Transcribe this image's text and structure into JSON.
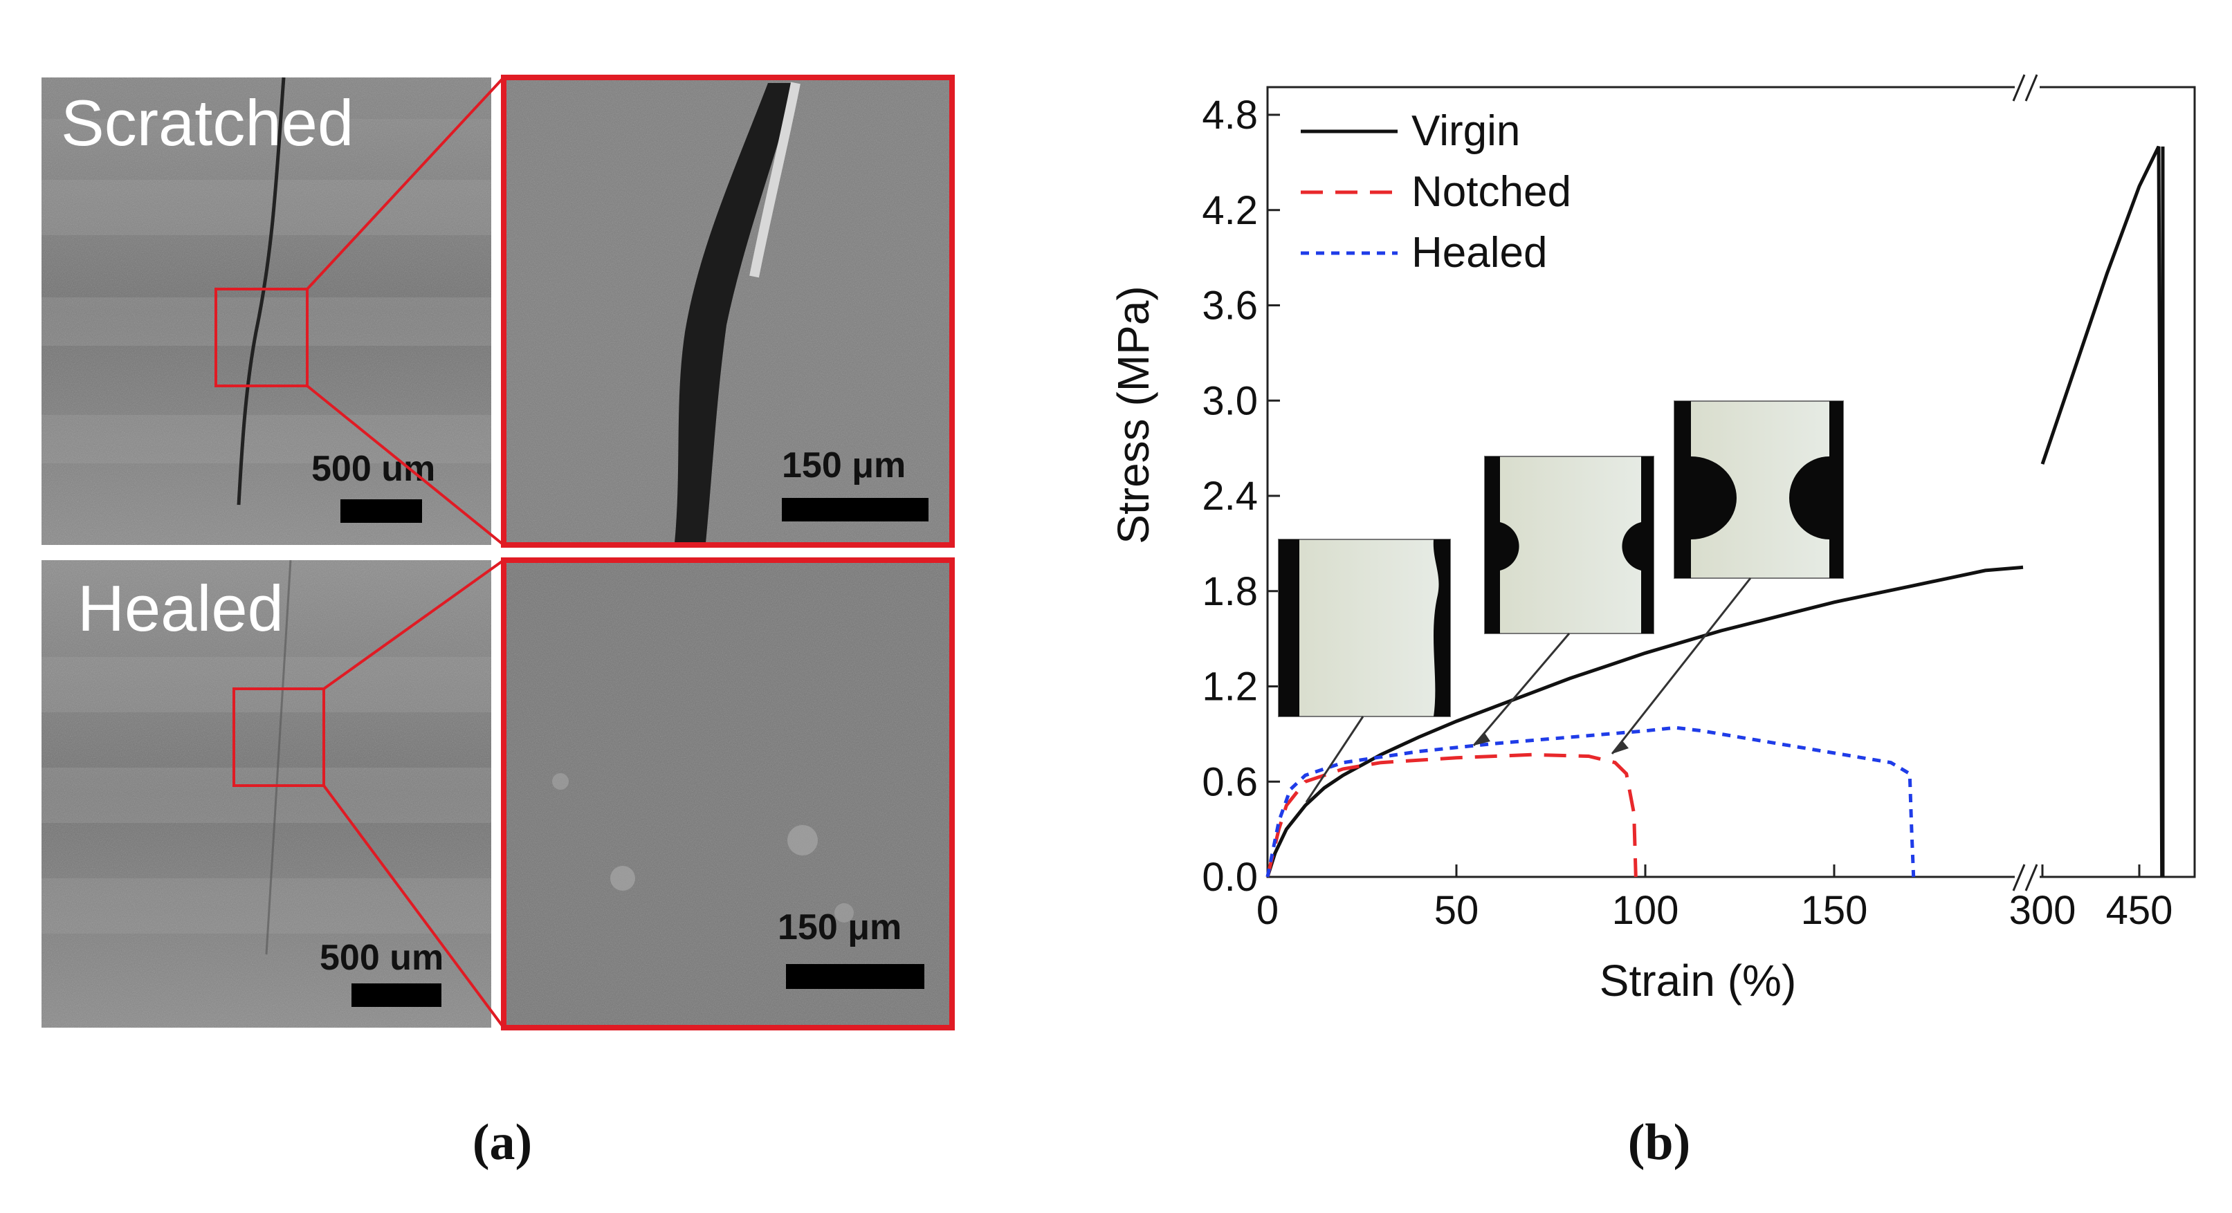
{
  "panel_a": {
    "label": "(a)",
    "top_label": "Scratched",
    "bottom_label": "Healed",
    "scale_left": "500 um",
    "scale_right": "150 μm",
    "highlight_color": "#e01b24"
  },
  "panel_b": {
    "label": "(b)"
  },
  "chart_data": {
    "type": "line",
    "xlabel": "Strain (%)",
    "ylabel": "Stress (MPa)",
    "x_ticks": [
      "0",
      "50",
      "100",
      "150",
      "300",
      "450"
    ],
    "y_ticks": [
      "0.0",
      "0.6",
      "1.2",
      "1.8",
      "2.4",
      "3.0",
      "3.6",
      "4.2",
      "4.8"
    ],
    "xlim": [
      0,
      500
    ],
    "ylim": [
      0,
      4.9
    ],
    "x_axis_break": "//",
    "legend_position": "top-left",
    "series": [
      {
        "name": "Virgin",
        "color": "#111111",
        "dash": "solid",
        "points": [
          [
            0,
            0
          ],
          [
            2,
            0.15
          ],
          [
            5,
            0.3
          ],
          [
            10,
            0.45
          ],
          [
            15,
            0.56
          ],
          [
            20,
            0.64
          ],
          [
            30,
            0.77
          ],
          [
            40,
            0.88
          ],
          [
            50,
            0.98
          ],
          [
            60,
            1.07
          ],
          [
            70,
            1.16
          ],
          [
            80,
            1.25
          ],
          [
            90,
            1.33
          ],
          [
            100,
            1.41
          ],
          [
            110,
            1.48
          ],
          [
            120,
            1.55
          ],
          [
            130,
            1.61
          ],
          [
            140,
            1.67
          ],
          [
            150,
            1.73
          ],
          [
            160,
            1.78
          ],
          [
            170,
            1.83
          ],
          [
            180,
            1.88
          ],
          [
            190,
            1.93
          ],
          [
            200,
            1.95
          ],
          [
            300,
            2.6
          ],
          [
            350,
            3.2
          ],
          [
            400,
            3.8
          ],
          [
            450,
            4.35
          ],
          [
            480,
            4.6
          ],
          [
            485,
            0
          ]
        ]
      },
      {
        "name": "Notched",
        "color": "#e8282b",
        "dash": "long",
        "points": [
          [
            0,
            0
          ],
          [
            3,
            0.3
          ],
          [
            5,
            0.45
          ],
          [
            10,
            0.6
          ],
          [
            20,
            0.68
          ],
          [
            30,
            0.72
          ],
          [
            50,
            0.75
          ],
          [
            70,
            0.77
          ],
          [
            85,
            0.76
          ],
          [
            92,
            0.72
          ],
          [
            95,
            0.65
          ],
          [
            97,
            0.4
          ],
          [
            97.5,
            0
          ]
        ]
      },
      {
        "name": "Healed",
        "color": "#1f3ce8",
        "dash": "short",
        "points": [
          [
            0,
            0
          ],
          [
            3,
            0.35
          ],
          [
            6,
            0.55
          ],
          [
            10,
            0.64
          ],
          [
            20,
            0.72
          ],
          [
            40,
            0.79
          ],
          [
            60,
            0.84
          ],
          [
            80,
            0.88
          ],
          [
            100,
            0.92
          ],
          [
            108,
            0.94
          ],
          [
            115,
            0.92
          ],
          [
            130,
            0.86
          ],
          [
            150,
            0.78
          ],
          [
            165,
            0.72
          ],
          [
            170,
            0.65
          ],
          [
            170.5,
            0.3
          ],
          [
            171,
            0
          ]
        ]
      }
    ],
    "annotations": [
      "specimen photo",
      "specimen photo",
      "specimen photo"
    ]
  }
}
